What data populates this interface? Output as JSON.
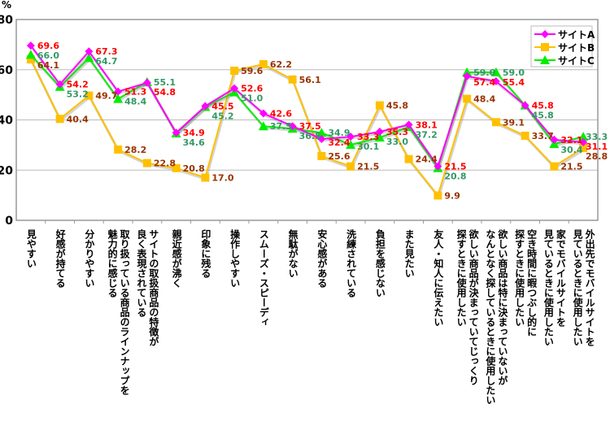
{
  "chart_data": {
    "type": "line",
    "ylabel": "%",
    "ylim": [
      0,
      80
    ],
    "yticks": [
      0,
      20,
      40,
      60,
      80
    ],
    "grid": true,
    "legend_position": "top-right",
    "categories": [
      "見やすい",
      "好感が持てる",
      "分かりやすい",
      "取り扱っている商品のラインナップを\n魅力的に感じる",
      "サイトの取扱商品の特徴が\n良く表現されている",
      "親近感が沸く",
      "印象に残る",
      "操作しやすい",
      "スムーズ・スピーディ",
      "無駄がない",
      "安心感がある",
      "洗練されている",
      "負担を感じない",
      "また見たい",
      "友人・知人に伝えたい",
      "欲しい商品が決まっていてじっくり\n探すときに使用したい",
      "欲しい商品は特に決まっていないが\nなんとなく探しているときに使用したい",
      "空き時間に暇つぶし的に\n探すときに使用したい",
      "家でモバイルサイトを\n見ているときに使用したい",
      "外出先でモバイルサイトを\n見ているときに使用したい"
    ],
    "series": [
      {
        "name": "サイトA",
        "color": "#ff00ff",
        "label_color": "#ff0000",
        "marker": "diamond",
        "values": [
          69.6,
          54.2,
          67.3,
          51.3,
          54.8,
          34.9,
          45.5,
          52.6,
          42.6,
          37.5,
          32.4,
          33.3,
          35.3,
          38.1,
          21.5,
          57.4,
          55.4,
          45.8,
          32.1,
          31.1
        ]
      },
      {
        "name": "サイトB",
        "color": "#ffc000",
        "label_color": "#993300",
        "marker": "square",
        "values": [
          64.1,
          40.4,
          49.7,
          28.2,
          22.8,
          20.8,
          17.0,
          59.6,
          62.2,
          56.1,
          25.6,
          21.5,
          45.8,
          24.4,
          9.9,
          48.4,
          39.1,
          33.7,
          21.5,
          28.8
        ]
      },
      {
        "name": "サイトC",
        "color": "#00ee00",
        "label_color": "#339966",
        "marker": "triangle",
        "values": [
          66.0,
          53.2,
          64.7,
          48.4,
          55.1,
          34.6,
          45.2,
          51.0,
          37.5,
          36.5,
          34.9,
          30.1,
          33.0,
          37.2,
          20.8,
          59.0,
          59.0,
          45.8,
          30.4,
          33.3
        ]
      }
    ]
  }
}
